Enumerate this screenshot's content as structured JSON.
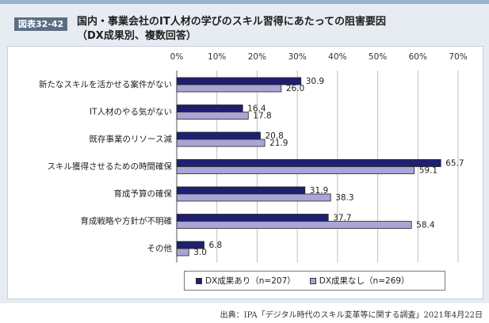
{
  "header": {
    "figure_label": "図表32-42",
    "title_line1": "国内・事業会社のIT人材の学びのスキル習得にあたっての阻害要因",
    "title_line2": "（DX成果別、複数回答）"
  },
  "chart_data": {
    "type": "bar",
    "orientation": "horizontal",
    "categories": [
      "新たなスキルを活かせる案件がない",
      "IT人材のやる気がない",
      "既存事業のリソース減",
      "スキル獲得させるための時間確保",
      "育成予算の確保",
      "育成戦略や方針が不明確",
      "その他"
    ],
    "series": [
      {
        "name": "DX成果あり（n=207）",
        "color": "#1f2070",
        "values": [
          30.9,
          16.4,
          20.8,
          65.7,
          31.9,
          37.7,
          6.8
        ]
      },
      {
        "name": "DX成果なし（n=269）",
        "color": "#a9a5d4",
        "values": [
          26.0,
          17.8,
          21.9,
          59.1,
          38.3,
          58.4,
          3.0
        ]
      }
    ],
    "value_labels": [
      [
        "30.9",
        "16.4",
        "20.8",
        "65.7",
        "31.9",
        "37.7",
        "6.8"
      ],
      [
        "26.0",
        "17.8",
        "21.9",
        "59.1",
        "38.3",
        "58.4",
        "3.0"
      ]
    ],
    "xlim": [
      0,
      70
    ],
    "tick_labels": [
      "0%",
      "10%",
      "20%",
      "30%",
      "40%",
      "50%",
      "60%",
      "70%"
    ],
    "grid": "vertical",
    "legend_position": "bottom"
  },
  "footer": {
    "source": "出典：IPA「デジタル時代のスキル変革等に関する調査」2021年4月22日"
  }
}
